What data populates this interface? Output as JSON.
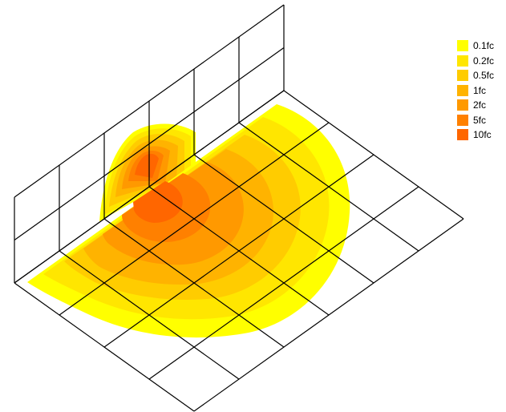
{
  "legend": {
    "items": [
      {
        "label": "0.1fc",
        "color": "#FFFF00"
      },
      {
        "label": "0.2fc",
        "color": "#FFE600"
      },
      {
        "label": "0.5fc",
        "color": "#FFCC00"
      },
      {
        "label": "1fc",
        "color": "#FFB300"
      },
      {
        "label": "2fc",
        "color": "#FF9900"
      },
      {
        "label": "5fc",
        "color": "#FF8000"
      },
      {
        "label": "10fc",
        "color": "#FF6600"
      }
    ]
  },
  "diagram": {
    "type": "isometric illuminance contour plot",
    "floor_grid": {
      "cells_along_wall": 5,
      "cells_away_from_wall": 4
    },
    "wall_grid": {
      "cells_along_wall": 5,
      "cells_vertical": 3
    }
  }
}
